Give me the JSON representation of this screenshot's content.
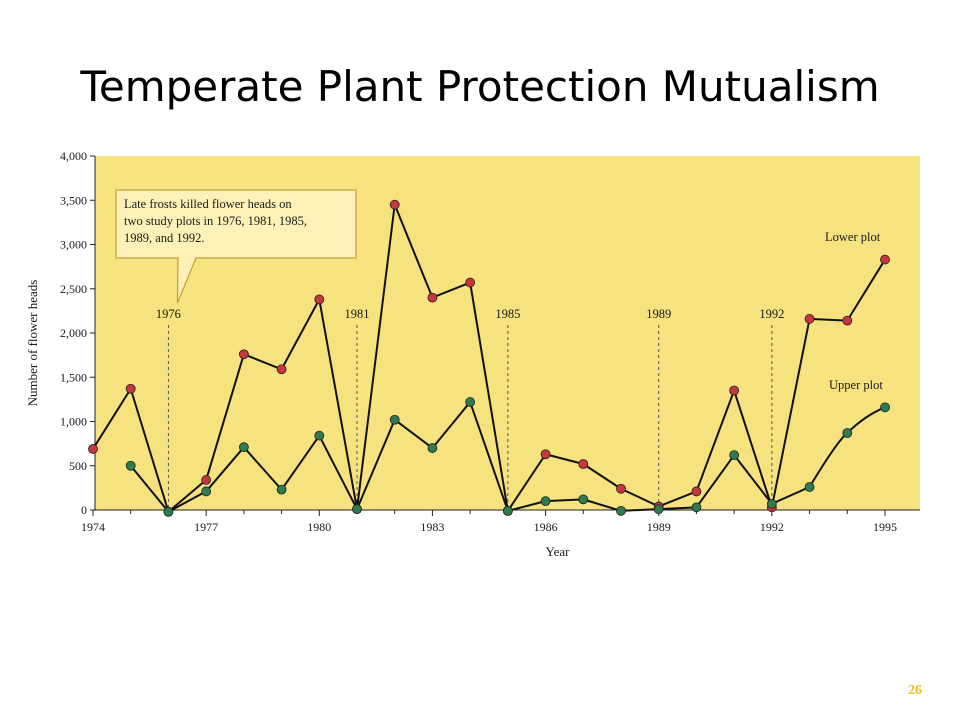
{
  "slide": {
    "title": "Temperate Plant Protection Mutualism",
    "page_number": "26"
  },
  "colors": {
    "plot_background": "#f6e27e",
    "lower_plot_marker": "#c8363d",
    "upper_plot_marker": "#2f7a4e",
    "line": "#111111",
    "callout_background": "#fdf1b8",
    "callout_border": "#c99a3c",
    "page_number": "#f0c020"
  },
  "chart_data": {
    "type": "line",
    "xlabel": "Year",
    "ylabel": "Number of flower heads",
    "xlim": [
      1974,
      1995
    ],
    "ylim": [
      0,
      4000
    ],
    "x_ticks": [
      1974,
      1977,
      1980,
      1983,
      1986,
      1989,
      1992,
      1995
    ],
    "y_ticks": [
      0,
      500,
      1000,
      1500,
      2000,
      2500,
      3000,
      3500,
      4000
    ],
    "y_tick_labels": [
      "0",
      "500",
      "1,000",
      "1,500",
      "2,000",
      "2,500",
      "3,000",
      "3,500",
      "4,000"
    ],
    "grid": false,
    "series": [
      {
        "name": "Lower plot",
        "points": [
          [
            1974,
            690
          ],
          [
            1975,
            1370
          ],
          [
            1976,
            -20
          ],
          [
            1977,
            340
          ],
          [
            1978,
            1760
          ],
          [
            1979,
            1590
          ],
          [
            1980,
            2380
          ],
          [
            1981,
            10
          ],
          [
            1982,
            3450
          ],
          [
            1983,
            2400
          ],
          [
            1984,
            2570
          ],
          [
            1985,
            -10
          ],
          [
            1986,
            630
          ],
          [
            1987,
            520
          ],
          [
            1988,
            240
          ],
          [
            1989,
            40
          ],
          [
            1990,
            210
          ],
          [
            1991,
            1350
          ],
          [
            1992,
            30
          ],
          [
            1993,
            2160
          ],
          [
            1994,
            2140
          ],
          [
            1995,
            2830
          ]
        ]
      },
      {
        "name": "Upper plot",
        "points": [
          [
            1975,
            500
          ],
          [
            1976,
            -20
          ],
          [
            1977,
            210
          ],
          [
            1978,
            710
          ],
          [
            1979,
            230
          ],
          [
            1980,
            840
          ],
          [
            1981,
            10
          ],
          [
            1982,
            1020
          ],
          [
            1983,
            700
          ],
          [
            1984,
            1220
          ],
          [
            1985,
            -10
          ],
          [
            1986,
            100
          ],
          [
            1987,
            120
          ],
          [
            1988,
            -10
          ],
          [
            1989,
            10
          ],
          [
            1990,
            30
          ],
          [
            1991,
            620
          ],
          [
            1992,
            70
          ],
          [
            1993,
            260
          ],
          [
            1994,
            870
          ],
          [
            1995,
            1160
          ]
        ]
      }
    ],
    "frost_years": [
      {
        "year": 1976,
        "label": "1976"
      },
      {
        "year": 1981,
        "label": "1981"
      },
      {
        "year": 1985,
        "label": "1985"
      },
      {
        "year": 1989,
        "label": "1989"
      },
      {
        "year": 1992,
        "label": "1992"
      }
    ],
    "annotation": {
      "lines": [
        "Late frosts killed flower heads on",
        "two study plots in 1976, 1981, 1985,",
        "1989, and 1992."
      ],
      "points_to_year": 1976
    }
  }
}
